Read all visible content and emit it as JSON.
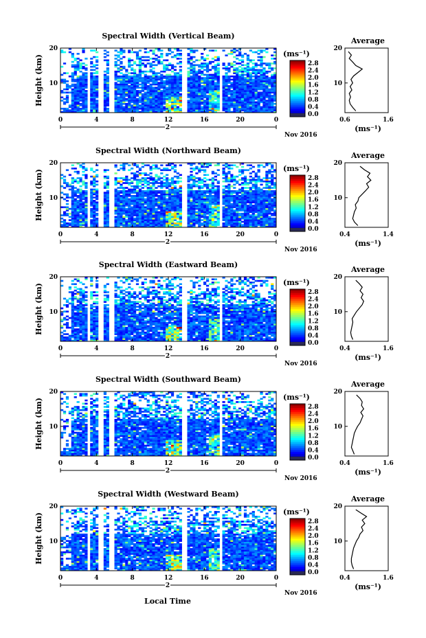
{
  "figure": {
    "xlabel": "Local Time",
    "date_label": "Nov 2016",
    "day_marker": "2",
    "colorbar_unit": "(ms⁻¹)",
    "avg_title": "Average",
    "avg_xlabel": "(ms⁻¹)",
    "ylabel": "Height (km)"
  },
  "chart_data": [
    {
      "type": "heatmap",
      "title": "Spectral Width (Vertical Beam)",
      "xlabel": "Local Time",
      "ylabel": "Height (km)",
      "xlim": [
        0,
        24
      ],
      "ylim": [
        1.5,
        20
      ],
      "x_ticks": [
        "0",
        "4",
        "8",
        "12",
        "16",
        "20",
        "0"
      ],
      "y_ticks": [
        "10",
        "20"
      ],
      "colorbar": {
        "label": "(ms⁻¹)",
        "range": [
          0.0,
          2.8
        ],
        "ticks": [
          "2.8",
          "2.4",
          "2.0",
          "1.6",
          "1.2",
          "0.8",
          "0.4",
          "0.0"
        ]
      },
      "data_gaps_hours": [
        [
          3.0,
          3.4
        ],
        [
          4.3,
          4.7
        ],
        [
          5.5,
          5.9
        ],
        [
          13.6,
          14.0
        ],
        [
          17.6,
          18.0
        ]
      ],
      "average_profile": {
        "title": "Average",
        "xlabel": "(ms⁻¹)",
        "xlim": [
          0.6,
          1.6
        ],
        "x_ticks": [
          "0.6",
          "1.6"
        ],
        "y_ticks": [
          "10",
          "20"
        ],
        "height_km": [
          2,
          3,
          4,
          5,
          6,
          7,
          8,
          9,
          10,
          11,
          12,
          13,
          14,
          15,
          16,
          17,
          18,
          19
        ],
        "width_ms": [
          0.85,
          0.78,
          0.72,
          0.7,
          0.73,
          0.7,
          0.76,
          0.72,
          0.78,
          0.74,
          0.8,
          0.9,
          1.0,
          0.85,
          0.78,
          0.7,
          0.75,
          0.68
        ]
      }
    },
    {
      "type": "heatmap",
      "title": "Spectral Width (Northward Beam)",
      "xlabel": "Local Time",
      "ylabel": "Height (km)",
      "xlim": [
        0,
        24
      ],
      "ylim": [
        1.5,
        20
      ],
      "x_ticks": [
        "0",
        "4",
        "8",
        "12",
        "16",
        "20",
        "0"
      ],
      "y_ticks": [
        "10",
        "20"
      ],
      "colorbar": {
        "label": "(ms⁻¹)",
        "range": [
          0.0,
          2.8
        ],
        "ticks": [
          "2.8",
          "2.4",
          "2.0",
          "1.6",
          "1.2",
          "0.8",
          "0.4",
          "0.0"
        ]
      },
      "data_gaps_hours": [
        [
          3.0,
          3.4
        ],
        [
          4.3,
          4.7
        ],
        [
          5.5,
          5.9
        ],
        [
          13.6,
          14.0
        ],
        [
          17.6,
          18.0
        ]
      ],
      "average_profile": {
        "title": "Average",
        "xlabel": "(ms⁻¹)",
        "xlim": [
          0.4,
          1.4
        ],
        "x_ticks": [
          "0.4",
          "1.4"
        ],
        "y_ticks": [
          "10",
          "20"
        ],
        "height_km": [
          2,
          3,
          4,
          5,
          6,
          7,
          8,
          9,
          10,
          11,
          12,
          13,
          14,
          15,
          16,
          17,
          18,
          19
        ],
        "width_ms": [
          0.7,
          0.62,
          0.58,
          0.6,
          0.62,
          0.66,
          0.64,
          0.7,
          0.72,
          0.8,
          0.88,
          0.95,
          0.9,
          1.0,
          0.92,
          0.98,
          0.85,
          0.75
        ]
      }
    },
    {
      "type": "heatmap",
      "title": "Spectral Width (Eastward Beam)",
      "xlabel": "Local Time",
      "ylabel": "Height (km)",
      "xlim": [
        0,
        24
      ],
      "ylim": [
        1.5,
        20
      ],
      "x_ticks": [
        "0",
        "4",
        "8",
        "12",
        "16",
        "20",
        "0"
      ],
      "y_ticks": [
        "10",
        "20"
      ],
      "colorbar": {
        "label": "(ms⁻¹)",
        "range": [
          0.0,
          2.8
        ],
        "ticks": [
          "2.8",
          "2.4",
          "2.0",
          "1.6",
          "1.2",
          "0.8",
          "0.4",
          "0.0"
        ]
      },
      "data_gaps_hours": [
        [
          3.0,
          3.4
        ],
        [
          4.3,
          4.7
        ],
        [
          5.5,
          5.9
        ],
        [
          13.6,
          14.0
        ],
        [
          17.6,
          18.0
        ]
      ],
      "average_profile": {
        "title": "Average",
        "xlabel": "(ms⁻¹)",
        "xlim": [
          0.4,
          1.6
        ],
        "x_ticks": [
          "0.4",
          "1.6"
        ],
        "y_ticks": [
          "10",
          "20"
        ],
        "height_km": [
          2,
          3,
          4,
          5,
          6,
          7,
          8,
          9,
          10,
          11,
          12,
          13,
          14,
          15,
          16,
          17,
          18,
          19
        ],
        "width_ms": [
          0.62,
          0.58,
          0.56,
          0.58,
          0.6,
          0.62,
          0.6,
          0.66,
          0.72,
          0.8,
          0.88,
          0.92,
          0.85,
          0.9,
          0.82,
          0.88,
          0.8,
          0.7
        ]
      }
    },
    {
      "type": "heatmap",
      "title": "Spectral Width (Southward Beam)",
      "xlabel": "Local Time",
      "ylabel": "Height (km)",
      "xlim": [
        0,
        24
      ],
      "ylim": [
        1.5,
        20
      ],
      "x_ticks": [
        "0",
        "4",
        "8",
        "12",
        "16",
        "20",
        "0"
      ],
      "y_ticks": [
        "10",
        "20"
      ],
      "colorbar": {
        "label": "(ms⁻¹)",
        "range": [
          0.0,
          2.8
        ],
        "ticks": [
          "2.8",
          "2.4",
          "2.0",
          "1.6",
          "1.2",
          "0.8",
          "0.4",
          "0.0"
        ]
      },
      "data_gaps_hours": [
        [
          3.0,
          3.4
        ],
        [
          4.3,
          4.7
        ],
        [
          5.5,
          5.9
        ],
        [
          13.6,
          14.0
        ],
        [
          17.6,
          18.0
        ]
      ],
      "average_profile": {
        "title": "Average",
        "xlabel": "(ms⁻¹)",
        "xlim": [
          0.4,
          1.6
        ],
        "x_ticks": [
          "0.4",
          "1.6"
        ],
        "y_ticks": [
          "10",
          "20"
        ],
        "height_km": [
          2,
          3,
          4,
          5,
          6,
          7,
          8,
          9,
          10,
          11,
          12,
          13,
          14,
          15,
          16,
          17,
          18,
          19
        ],
        "width_ms": [
          0.66,
          0.62,
          0.58,
          0.6,
          0.62,
          0.64,
          0.66,
          0.7,
          0.75,
          0.82,
          0.86,
          0.9,
          0.84,
          0.92,
          0.86,
          0.88,
          0.82,
          0.72
        ]
      }
    },
    {
      "type": "heatmap",
      "title": "Spectral Width (Westward Beam)",
      "xlabel": "Local Time",
      "ylabel": "Height (km)",
      "xlim": [
        0,
        24
      ],
      "ylim": [
        1.5,
        20
      ],
      "x_ticks": [
        "0",
        "4",
        "8",
        "12",
        "16",
        "20",
        "0"
      ],
      "y_ticks": [
        "10",
        "20"
      ],
      "colorbar": {
        "label": "(ms⁻¹)",
        "range": [
          0.0,
          2.8
        ],
        "ticks": [
          "2.8",
          "2.4",
          "2.0",
          "1.6",
          "1.2",
          "0.8",
          "0.4",
          "0.0"
        ]
      },
      "data_gaps_hours": [
        [
          3.0,
          3.4
        ],
        [
          4.3,
          4.7
        ],
        [
          5.5,
          5.9
        ],
        [
          13.6,
          14.0
        ],
        [
          17.6,
          18.0
        ]
      ],
      "average_profile": {
        "title": "Average",
        "xlabel": "(ms⁻¹)",
        "xlim": [
          0.4,
          1.6
        ],
        "x_ticks": [
          "0.4",
          "1.6"
        ],
        "y_ticks": [
          "10",
          "20"
        ],
        "height_km": [
          2,
          3,
          4,
          5,
          6,
          7,
          8,
          9,
          10,
          11,
          12,
          13,
          14,
          15,
          16,
          17,
          18,
          19
        ],
        "width_ms": [
          0.64,
          0.6,
          0.58,
          0.58,
          0.6,
          0.62,
          0.64,
          0.68,
          0.72,
          0.78,
          0.82,
          0.9,
          0.86,
          0.95,
          0.88,
          1.0,
          0.85,
          0.7
        ]
      }
    }
  ]
}
